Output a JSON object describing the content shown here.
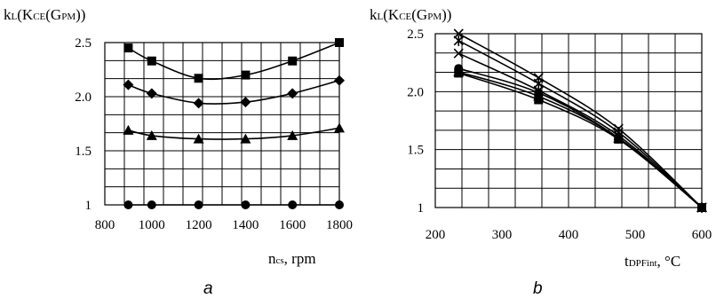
{
  "chart_data": [
    {
      "id": "a",
      "type": "line",
      "panel_label": "a",
      "ylabel_main": "k",
      "ylabel_sub": "L",
      "ylabel_rest_open": "(K",
      "ylabel_rest_sub": "CE",
      "ylabel_rest_mid": "(G",
      "ylabel_rest_sub2": "PM",
      "ylabel_rest_close": "))",
      "xlabel_main": "n",
      "xlabel_sub": "cs",
      "xlabel_rest": ", rpm",
      "xlim": [
        800,
        1800
      ],
      "ylim": [
        1,
        2.5
      ],
      "xticks": [
        "800",
        "1000",
        "1200",
        "1400",
        "1600",
        "1800"
      ],
      "yticks": [
        "1",
        "1.5",
        "2.0",
        "2.5"
      ],
      "grid": true,
      "series": [
        {
          "marker": "square",
          "x": [
            900,
            1000,
            1200,
            1400,
            1600,
            1800
          ],
          "values": [
            2.45,
            2.33,
            2.17,
            2.2,
            2.33,
            2.5
          ]
        },
        {
          "marker": "diamond",
          "x": [
            900,
            1000,
            1200,
            1400,
            1600,
            1800
          ],
          "values": [
            2.11,
            2.03,
            1.94,
            1.95,
            2.03,
            2.15
          ]
        },
        {
          "marker": "triangle",
          "x": [
            900,
            1000,
            1200,
            1400,
            1600,
            1800
          ],
          "values": [
            1.69,
            1.64,
            1.61,
            1.61,
            1.64,
            1.71
          ]
        },
        {
          "marker": "circle",
          "x": [
            900,
            1000,
            1200,
            1400,
            1600,
            1800
          ],
          "values": [
            1.0,
            1.0,
            1.0,
            1.0,
            1.0,
            1.0
          ]
        }
      ]
    },
    {
      "id": "b",
      "type": "line",
      "panel_label": "b",
      "ylabel_main": "k",
      "ylabel_sub": "L",
      "ylabel_rest_open": "(K",
      "ylabel_rest_sub": "CE",
      "ylabel_rest_mid": "(G",
      "ylabel_rest_sub2": "PM",
      "ylabel_rest_close": "))",
      "xlabel_main": "t",
      "xlabel_sub": "DPFint",
      "xlabel_rest": ", °C",
      "xlim": [
        200,
        600
      ],
      "ylim": [
        1,
        2.5
      ],
      "xticks": [
        "200",
        "300",
        "400",
        "500",
        "600"
      ],
      "yticks": [
        "1",
        "1.5",
        "2.0",
        "2.5"
      ],
      "grid": true,
      "series": [
        {
          "marker": "cross",
          "x": [
            235,
            355,
            475,
            600
          ],
          "values": [
            2.5,
            2.12,
            1.68,
            1.0
          ]
        },
        {
          "marker": "star",
          "x": [
            235,
            355,
            475,
            600
          ],
          "values": [
            2.44,
            2.07,
            1.65,
            1.0
          ]
        },
        {
          "marker": "cross",
          "x": [
            235,
            355,
            475,
            600
          ],
          "values": [
            2.33,
            2.01,
            1.62,
            1.0
          ]
        },
        {
          "marker": "circle",
          "x": [
            235,
            355,
            475,
            600
          ],
          "values": [
            2.2,
            1.99,
            1.6,
            1.0
          ]
        },
        {
          "marker": "triangle",
          "x": [
            235,
            355,
            475,
            600
          ],
          "values": [
            2.17,
            1.96,
            1.6,
            1.0
          ]
        },
        {
          "marker": "square",
          "x": [
            235,
            355,
            475,
            600
          ],
          "values": [
            2.16,
            1.93,
            1.59,
            1.0
          ]
        }
      ]
    }
  ]
}
